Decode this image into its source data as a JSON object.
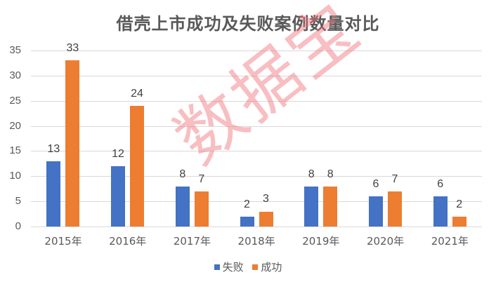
{
  "chart_data": {
    "type": "bar",
    "title": "借壳上市成功及失败案例数量对比",
    "categories": [
      "2015年",
      "2016年",
      "2017年",
      "2018年",
      "2019年",
      "2020年",
      "2021年"
    ],
    "series": [
      {
        "name": "失败",
        "color": "#4472C4",
        "values": [
          13,
          12,
          8,
          2,
          8,
          6,
          6
        ]
      },
      {
        "name": "成功",
        "color": "#ED7D31",
        "values": [
          33,
          24,
          7,
          3,
          8,
          7,
          2
        ]
      }
    ],
    "xlabel": "",
    "ylabel": "",
    "ylim": [
      0,
      35
    ],
    "yticks": [
      0,
      5,
      10,
      15,
      20,
      25,
      30,
      35
    ],
    "grid": true,
    "legend_position": "bottom",
    "data_labels": true
  },
  "watermark": "数据宝"
}
